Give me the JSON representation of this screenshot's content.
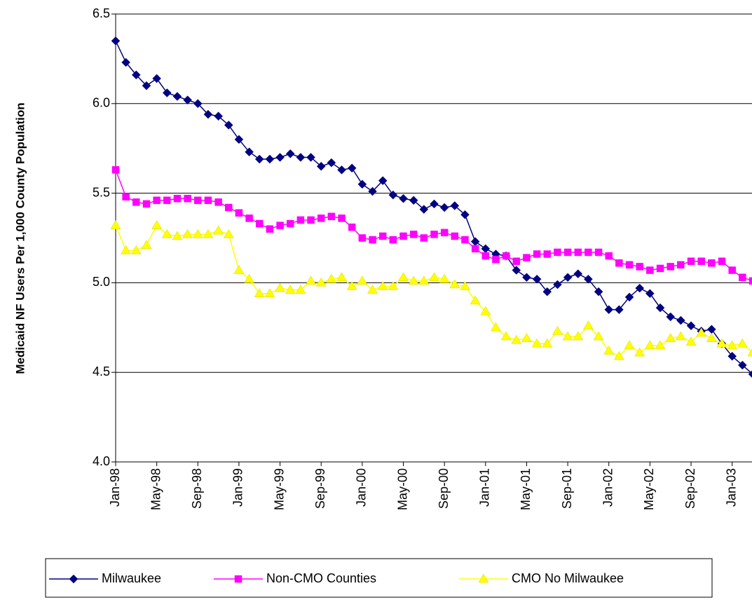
{
  "chart_data": {
    "type": "line",
    "y_label": "Medicaid NF Users Per 1,000 County Population",
    "categories": [
      "Jan-98",
      null,
      null,
      null,
      "May-98",
      null,
      null,
      null,
      "Sep-98",
      null,
      null,
      null,
      "Jan-99",
      null,
      null,
      null,
      "May-99",
      null,
      null,
      null,
      "Sep-99",
      null,
      null,
      null,
      "Jan-00",
      null,
      null,
      null,
      "May-00",
      null,
      null,
      null,
      "Sep-00",
      null,
      null,
      null,
      "Jan-01",
      null,
      null,
      null,
      "May-01",
      null,
      null,
      null,
      "Sep-01",
      null,
      null,
      null,
      "Jan-02",
      null,
      null,
      null,
      "May-02",
      null,
      null,
      null,
      "Sep-02",
      null,
      null,
      null,
      "Jan-03",
      null,
      null
    ],
    "series": [
      {
        "name": "Milwaukee",
        "color": "#000080",
        "marker": "diamond",
        "values": [
          6.35,
          6.23,
          6.16,
          6.1,
          6.14,
          6.06,
          6.04,
          6.02,
          6.0,
          5.94,
          5.93,
          5.88,
          5.8,
          5.73,
          5.69,
          5.69,
          5.7,
          5.72,
          5.7,
          5.7,
          5.65,
          5.67,
          5.63,
          5.64,
          5.55,
          5.51,
          5.57,
          5.49,
          5.47,
          5.46,
          5.41,
          5.44,
          5.42,
          5.43,
          5.38,
          5.23,
          5.19,
          5.16,
          5.15,
          5.07,
          5.03,
          5.02,
          4.95,
          4.99,
          5.03,
          5.05,
          5.02,
          4.95,
          4.85,
          4.85,
          4.92,
          4.97,
          4.94,
          4.86,
          4.81,
          4.79,
          4.76,
          4.73,
          4.74,
          4.66,
          4.59,
          4.54,
          4.49
        ]
      },
      {
        "name": "Non-CMO Counties",
        "color": "#FF00FF",
        "marker": "square",
        "values": [
          5.63,
          5.48,
          5.45,
          5.44,
          5.46,
          5.46,
          5.47,
          5.47,
          5.46,
          5.46,
          5.45,
          5.42,
          5.39,
          5.36,
          5.33,
          5.3,
          5.32,
          5.33,
          5.35,
          5.35,
          5.36,
          5.37,
          5.36,
          5.31,
          5.25,
          5.24,
          5.26,
          5.24,
          5.26,
          5.27,
          5.25,
          5.27,
          5.28,
          5.26,
          5.24,
          5.19,
          5.15,
          5.13,
          5.15,
          5.12,
          5.14,
          5.16,
          5.16,
          5.17,
          5.17,
          5.17,
          5.17,
          5.17,
          5.15,
          5.11,
          5.1,
          5.09,
          5.07,
          5.08,
          5.09,
          5.1,
          5.12,
          5.12,
          5.11,
          5.12,
          5.07,
          5.03,
          5.01
        ]
      },
      {
        "name": "CMO No Milwaukee",
        "color": "#FFFF00",
        "marker": "triangle",
        "values": [
          5.32,
          5.18,
          5.18,
          5.21,
          5.32,
          5.27,
          5.26,
          5.27,
          5.27,
          5.27,
          5.29,
          5.27,
          5.07,
          5.02,
          4.94,
          4.94,
          4.97,
          4.96,
          4.96,
          5.01,
          5.0,
          5.02,
          5.03,
          4.98,
          5.01,
          4.96,
          4.98,
          4.98,
          5.03,
          5.01,
          5.01,
          5.03,
          5.02,
          4.99,
          4.98,
          4.9,
          4.84,
          4.75,
          4.7,
          4.68,
          4.69,
          4.66,
          4.66,
          4.73,
          4.7,
          4.7,
          4.76,
          4.7,
          4.62,
          4.59,
          4.65,
          4.61,
          4.65,
          4.65,
          4.69,
          4.7,
          4.67,
          4.72,
          4.69,
          4.66,
          4.65,
          4.66,
          4.61
        ]
      }
    ],
    "ylim": [
      4,
      6.5
    ],
    "yticks": [
      {
        "value": 4,
        "label": "4.0"
      },
      4.5,
      {
        "value": 5,
        "label": "5.0"
      },
      5.5,
      {
        "value": 6,
        "label": "6.0"
      },
      6.5
    ],
    "grid": true,
    "legend": "bottom"
  }
}
